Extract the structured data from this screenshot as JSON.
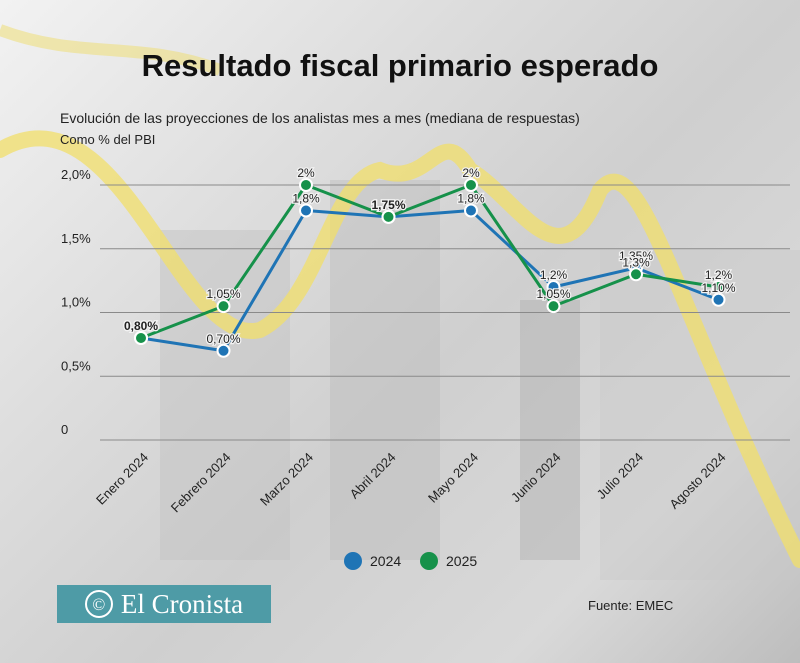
{
  "header": {
    "title": "Resultado fiscal primario esperado",
    "subtitle": "Evolución de las proyecciones de los analistas mes a mes (mediana de respuestas)",
    "unit": "Como % del PBI"
  },
  "chart_data": {
    "type": "line",
    "categories": [
      "Enero 2024",
      "Febrero 2024",
      "Marzo 2024",
      "Abril 2024",
      "Mayo 2024",
      "Junio 2024",
      "Julio 2024",
      "Agosto 2024"
    ],
    "series": [
      {
        "name": "2024",
        "color": "#1f74b5",
        "values": [
          0.8,
          0.7,
          1.8,
          1.75,
          1.8,
          1.2,
          1.35,
          1.1
        ],
        "labels": [
          "0,80%",
          "0,70%",
          "1,8%",
          "1,75%",
          "1,8%",
          "1,2%",
          "1,35%",
          "1,10%"
        ]
      },
      {
        "name": "2025",
        "color": "#16914a",
        "values": [
          0.8,
          1.05,
          2.0,
          1.75,
          2.0,
          1.05,
          1.3,
          1.2
        ],
        "labels": [
          "0,80%",
          "1,05%",
          "2%",
          "1,75%",
          "2%",
          "1,05%",
          "1,3%",
          "1,2%"
        ]
      }
    ],
    "yticks": [
      {
        "value": 0,
        "label": "0"
      },
      {
        "value": 0.5,
        "label": "0,5%"
      },
      {
        "value": 1.0,
        "label": "1,0%"
      },
      {
        "value": 1.5,
        "label": "1,5%"
      },
      {
        "value": 2.0,
        "label": "2,0%"
      }
    ],
    "ylim": [
      0,
      2.0
    ],
    "grid": true,
    "legend_position": "bottom"
  },
  "legend": {
    "items": [
      {
        "label": "2024",
        "color": "#1f74b5"
      },
      {
        "label": "2025",
        "color": "#16914a"
      }
    ]
  },
  "footer": {
    "logo_text": "El Cronista",
    "logo_icon": "copyright-c-icon",
    "source": "Fuente: EMEC"
  }
}
